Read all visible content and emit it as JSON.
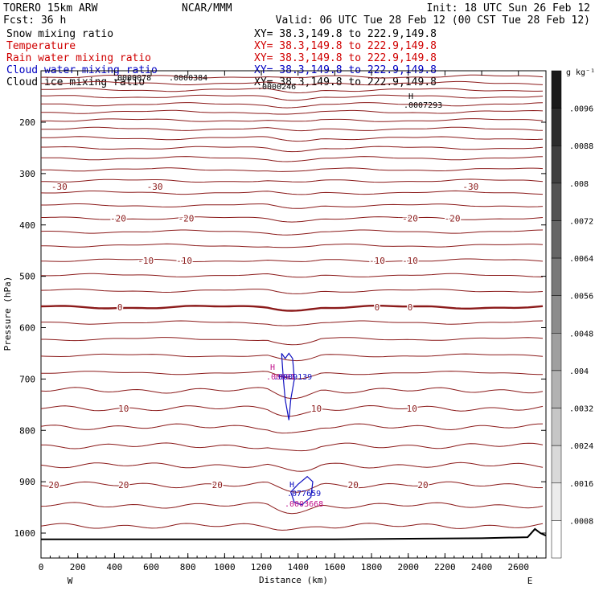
{
  "header": {
    "model": "TORERO  15km ARW",
    "center": "NCAR/MMM",
    "init": "Init: 18 UTC Sun 26 Feb 12",
    "fcst": "Fcst:   36 h",
    "valid": "Valid: 06 UTC Tue 28 Feb 12 (00 CST Tue 28 Feb 12)"
  },
  "legend": {
    "fields": [
      {
        "name": "Snow mixing ratio",
        "xy": "XY=  38.3,149.8 to 222.9,149.8",
        "color": "#000000"
      },
      {
        "name": "Temperature",
        "xy": "XY=  38.3,149.8 to 222.9,149.8",
        "color": "#d00000"
      },
      {
        "name": "Rain water mixing ratio",
        "xy": "XY=  38.3,149.8 to 222.9,149.8",
        "color": "#d00000"
      },
      {
        "name": "Cloud water mixing ratio",
        "xy": "XY=  38.3,149.8 to 222.9,149.8",
        "color": "#0000c0"
      },
      {
        "name": "Cloud ice mixing ratio",
        "xy": "XY=  38.3,149.8 to 222.9,149.8",
        "color": "#000000"
      }
    ]
  },
  "annotations": {
    "snow_labels": [
      ".0000078",
      ".0000384",
      ".0000246"
    ],
    "snow_max_marker": "H",
    "snow_max_value": ".0007293",
    "cloud_marker": "H",
    "cloud_labels": [
      ".00001",
      ".0009139"
    ],
    "low_marker": "H",
    "low_cloud_value": ".077659",
    "low_rain_value": ".0003668"
  },
  "colorbar": {
    "unit": "g kg⁻¹",
    "ticks": [
      ".0096",
      ".0088",
      ".008",
      ".0072",
      ".0064",
      ".0056",
      ".0048",
      ".004",
      ".0032",
      ".0024",
      ".0016",
      ".0008"
    ],
    "range": [
      0,
      0.0104
    ]
  },
  "colors": {
    "temperature": "#8b1a1a",
    "cloud_water": "#1010c0",
    "rain": "#c0108a",
    "snow": "#000000",
    "terrain": "#000000"
  },
  "chart_data": {
    "type": "line",
    "title": "",
    "xlabel": "Distance (km)",
    "ylabel": "Pressure (hPa)",
    "xlim": [
      0,
      2750
    ],
    "ylim": [
      1050,
      100
    ],
    "x_ticks": [
      0,
      200,
      400,
      600,
      800,
      1000,
      1200,
      1400,
      1600,
      1800,
      2000,
      2200,
      2400,
      2600
    ],
    "y_ticks": [
      200,
      300,
      400,
      500,
      600,
      700,
      800,
      900,
      1000
    ],
    "x_end_labels": [
      "W",
      "E"
    ],
    "isotherm_pressures": [
      111,
      124,
      137,
      150,
      165,
      180,
      196,
      213,
      231,
      250,
      270,
      292,
      314,
      337,
      362,
      387,
      413,
      440,
      469,
      498,
      528,
      560,
      590,
      622,
      654,
      688,
      722,
      757,
      793,
      830,
      868,
      906,
      946,
      986
    ],
    "labeled_isotherms": [
      {
        "label": "-30",
        "p": 325,
        "positions": [
          100,
          620,
          2340
        ]
      },
      {
        "label": "-20",
        "p": 387,
        "positions": [
          420,
          790,
          2010,
          2240
        ]
      },
      {
        "label": "-10",
        "p": 469,
        "positions": [
          570,
          780,
          1830,
          2010
        ]
      },
      {
        "label": "0",
        "p": 560,
        "positions": [
          430,
          1830,
          2010
        ]
      },
      {
        "label": "10",
        "p": 757,
        "positions": [
          450,
          1500,
          2020
        ]
      },
      {
        "label": "20",
        "p": 906,
        "positions": [
          70,
          450,
          960,
          1700,
          2080
        ]
      }
    ],
    "cloud_water_contours": [
      [
        [
          1310,
          650
        ],
        [
          1330,
          660
        ],
        [
          1350,
          650
        ],
        [
          1370,
          660
        ],
        [
          1380,
          700
        ],
        [
          1360,
          740
        ],
        [
          1350,
          780
        ],
        [
          1330,
          740
        ],
        [
          1320,
          700
        ],
        [
          1310,
          650
        ]
      ],
      [
        [
          1360,
          920
        ],
        [
          1400,
          905
        ],
        [
          1450,
          890
        ],
        [
          1480,
          900
        ],
        [
          1470,
          930
        ],
        [
          1420,
          945
        ],
        [
          1380,
          940
        ],
        [
          1360,
          920
        ]
      ]
    ],
    "terrain": [
      [
        0,
        1012
      ],
      [
        1600,
        1012
      ],
      [
        2400,
        1010
      ],
      [
        2650,
        1008
      ],
      [
        2690,
        992
      ],
      [
        2720,
        1000
      ],
      [
        2750,
        1005
      ]
    ]
  }
}
